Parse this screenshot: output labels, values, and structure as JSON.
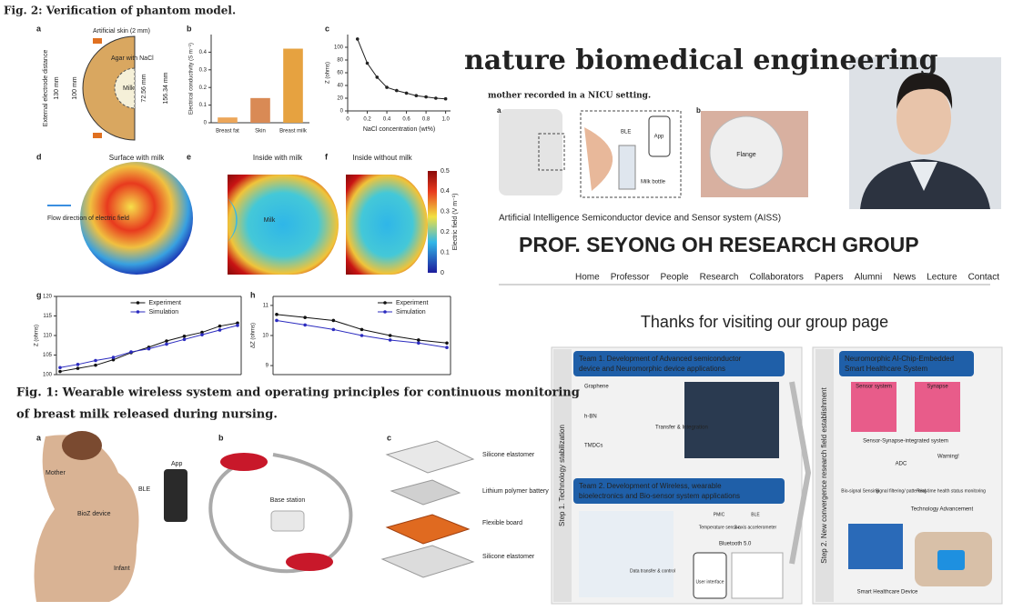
{
  "website": {
    "journal": "nature biomedical engineering",
    "caption": "mother recorded in a NICU setting.",
    "aiss": "Artificial Intelligence Semiconductor device and Sensor system (AISS)",
    "group": "PROF. SEYONG OH RESEARCH GROUP",
    "nav": [
      "Home",
      "Professor",
      "People",
      "Research",
      "Collaborators",
      "Papers",
      "Alumni",
      "News",
      "Lecture",
      "Contact"
    ],
    "welcome": "Thanks for visiting our group page",
    "nature_panel": {
      "letters": [
        "a",
        "b"
      ],
      "ble": "BLE",
      "app": "App",
      "milk_bottle": "Milk bottle",
      "flange": "Flange"
    }
  },
  "fig2": {
    "title": "Fig. 2: Verification of phantom model.",
    "letters": [
      "a",
      "b",
      "c",
      "d",
      "e",
      "f",
      "g",
      "h"
    ],
    "a": {
      "skin": "Artificial skin (2 mm)",
      "agar": "Agar with NaCl",
      "milk": "Milk",
      "external": "External electrode distance",
      "d130": "130 mm",
      "d100": "100 mm",
      "d72": "72.56 mm",
      "d156": "156.34 mm"
    },
    "d": {
      "title": "Surface with milk",
      "flow": "Flow direction of electric field"
    },
    "e": {
      "title": "Inside with milk",
      "milk": "Milk"
    },
    "f": {
      "title": "Inside without milk"
    },
    "colorbar": {
      "label": "Electric field (V m⁻¹)",
      "ticks": [
        0,
        0.1,
        0.2,
        0.3,
        0.4,
        0.5
      ]
    }
  },
  "fig1": {
    "title_lines": [
      "Fig. 1: Wearable wireless system and operating principles for continuous monitoring",
      "of breast milk released during nursing."
    ],
    "letters": [
      "a",
      "b",
      "c"
    ],
    "a": {
      "mother": "Mother",
      "app": "App",
      "ble": "BLE",
      "bioz": "BioZ device",
      "infant": "Infant"
    },
    "b": {
      "base": "Base station"
    },
    "c": {
      "layers": [
        "Silicone elastomer",
        "Lithium polymer battery",
        "Flexible board",
        "Silicone elastomer"
      ]
    }
  },
  "diagram": {
    "team1": [
      "Team 1. Development of Advanced semiconductor",
      "device and Neuromorphic device applications"
    ],
    "team2": [
      "Team 2. Development of Wireless, wearable",
      "bioelectronics and Bio-sensor system applications"
    ],
    "right": [
      "Neuromorphic AI-Chip-Embedded",
      "Smart Healthcare System"
    ],
    "step1": "Step 1. Technology stabilization",
    "step2": "Step 2. New convergence research field establishment",
    "materials": [
      "Graphene",
      "h-BN",
      "TMDCs"
    ],
    "transfer": "Transfer & Integration",
    "sensor": "Sensor system",
    "synapse": "Synapse",
    "integrated": "Sensor-Synapse-integrated system",
    "adc": "ADC",
    "warning": "Warning!",
    "steps": [
      "Bio-signal Sensing",
      "Signal filtering/ patterning",
      "Real-time health status monitoring"
    ],
    "advance": "Technology Advancement",
    "device": "Smart Healthcare Device",
    "bluetooth": "Bluetooth 5.0",
    "transfer_control": "Data transfer & control",
    "ui": "User interface",
    "chips": [
      "PMIC",
      "BLE",
      "Temperature sensor",
      "3-axis accelerometer"
    ]
  },
  "chart_data": [
    {
      "type": "bar",
      "ylabel": "Electrical conductivity (S m⁻¹)",
      "categories": [
        "Breast fat",
        "Skin",
        "Breast milk"
      ],
      "values": [
        0.03,
        0.14,
        0.42
      ],
      "colors": [
        "#eca65a",
        "#d98a55",
        "#e6a240"
      ],
      "ylim": [
        0,
        0.5
      ],
      "yticks": [
        0,
        0.1,
        0.2,
        0.3,
        0.4
      ]
    },
    {
      "type": "line",
      "xlabel": "NaCl concentration (wt%)",
      "ylabel": "Z (ohms)",
      "x": [
        0.1,
        0.2,
        0.3,
        0.4,
        0.5,
        0.6,
        0.7,
        0.8,
        0.9,
        1.0
      ],
      "values": [
        113,
        75,
        53,
        37,
        32,
        28,
        24,
        22,
        20,
        19
      ],
      "color": "#222222",
      "xlim": [
        0,
        1.05
      ],
      "xticks": [
        0,
        0.2,
        0.4,
        0.6,
        0.8,
        {
          "value": 1,
          "label": "1.0"
        }
      ],
      "ylim": [
        0,
        120
      ],
      "yticks": [
        0,
        20,
        40,
        60,
        80,
        100
      ]
    },
    {
      "type": "line",
      "ylabel": "Z (ohms)",
      "legend": "upper center",
      "ylim": [
        100,
        120
      ],
      "yticks": [
        100,
        105,
        110,
        115,
        120
      ],
      "series": [
        {
          "name": "Experiment",
          "color": "#111111",
          "values": [
            100.8,
            101.6,
            102.4,
            103.8,
            105.6,
            107,
            108.6,
            109.8,
            110.8,
            112.4,
            113.2
          ]
        },
        {
          "name": "Simulation",
          "color": "#2b2bbf",
          "values": [
            101.8,
            102.6,
            103.6,
            104.4,
            105.8,
            106.6,
            107.8,
            109,
            110.2,
            111.4,
            112.6
          ]
        }
      ]
    },
    {
      "type": "line",
      "ylabel": "ΔZ (ohms)",
      "legend": "upper right",
      "ylim": [
        8.7,
        11.3
      ],
      "yticks": [
        9,
        10,
        11
      ],
      "series": [
        {
          "name": "Experiment",
          "color": "#111111",
          "values": [
            10.7,
            10.6,
            10.5,
            10.2,
            10,
            9.85,
            9.75
          ]
        },
        {
          "name": "Simulation",
          "color": "#2b2bbf",
          "values": [
            10.5,
            10.35,
            10.2,
            10,
            9.85,
            9.75,
            9.6
          ]
        }
      ]
    }
  ]
}
